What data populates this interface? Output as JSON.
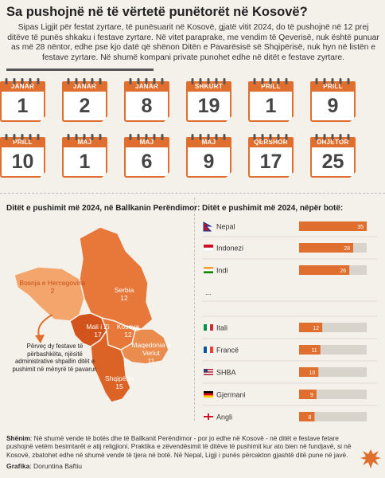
{
  "title": "Sa pushojnë në të vërtetë punëtorët në Kosovë?",
  "intro": "Sipas Ligjit për festat zyrtare, të punësuarit në Kosovë, gjatë vitit 2024, do të pushojnë në 12 prej ditëve të punës shkaku i festave zyrtare. Në vitet paraprake, me vendim të Qeverisë, nuk është punuar as më 28 nëntor, edhe pse kjo datë që shënon Ditën e Pavarësisë së Shqipërisë, nuk hyn në listën e festave zyrtare. Në shumë kompani private punohet edhe në ditët e festave zyrtare.",
  "holidays": [
    {
      "month": "JANAR",
      "day": "1"
    },
    {
      "month": "JANAR",
      "day": "2"
    },
    {
      "month": "JANAR",
      "day": "8"
    },
    {
      "month": "SHKURT",
      "day": "19"
    },
    {
      "month": "PRILL",
      "day": "1"
    },
    {
      "month": "PRILL",
      "day": "9"
    },
    {
      "month": "PRILL",
      "day": "10"
    },
    {
      "month": "MAJ",
      "day": "1"
    },
    {
      "month": "MAJ",
      "day": "6"
    },
    {
      "month": "MAJ",
      "day": "9"
    },
    {
      "month": "QERSHOR",
      "day": "17"
    },
    {
      "month": "DHJETOR",
      "day": "25"
    }
  ],
  "map_section": {
    "title": "Ditët e pushimit më 2024, në Ballkanin Perëndimor:",
    "countries": [
      {
        "name": "Bosnja e Hercegovina",
        "value": "2",
        "color": "#f3a56b"
      },
      {
        "name": "Serbia",
        "value": "12",
        "color": "#e8773a"
      },
      {
        "name": "Mali i Zi",
        "value": "17",
        "color": "#d2531b"
      },
      {
        "name": "Kosova",
        "value": "12",
        "color": "#e8773a"
      },
      {
        "name": "Maqedonia e Veriut",
        "value": "11",
        "color": "#eb8c4f"
      },
      {
        "name": "Shqipëria",
        "value": "15",
        "color": "#dc6326"
      }
    ],
    "note": "Përveç dy festave të përbashkëta, njësitë administrative shpallin ditët e pushimit në mënyrë të pavarur."
  },
  "chart_data": {
    "type": "bar",
    "title": "Ditët e pushimit më 2024, nëpër botë:",
    "orientation": "horizontal",
    "categories": [
      "Nepal",
      "Indonezi",
      "Indi",
      "Itali",
      "Francë",
      "SHBA",
      "Gjermani",
      "Angli"
    ],
    "values": [
      35,
      28,
      26,
      12,
      11,
      10,
      9,
      8
    ],
    "xlim": [
      0,
      35
    ],
    "gap_label": "...",
    "bar_color": "#e06e2e",
    "track_color": "#d9d4cb"
  },
  "footnote_label": "Shënim",
  "footnote": ": Në shumë vende të botës dhe të Ballkanit Perëndimor - por jo edhe në Kosovë - në ditët e festave fetare pushojnë vetëm besimtarët e atij religjioni. Praktika e zëvendësimit të ditëve të pushimit kur ato bien në fundjavë, si në Kosovë, zbatohet edhe në shumë vende të tjera në botë. Në Nepal, Ligji i punës përcakton gjashtë ditë pune në javë.",
  "credit_label": "Grafika",
  "credit": ": Doruntina Baftiu"
}
